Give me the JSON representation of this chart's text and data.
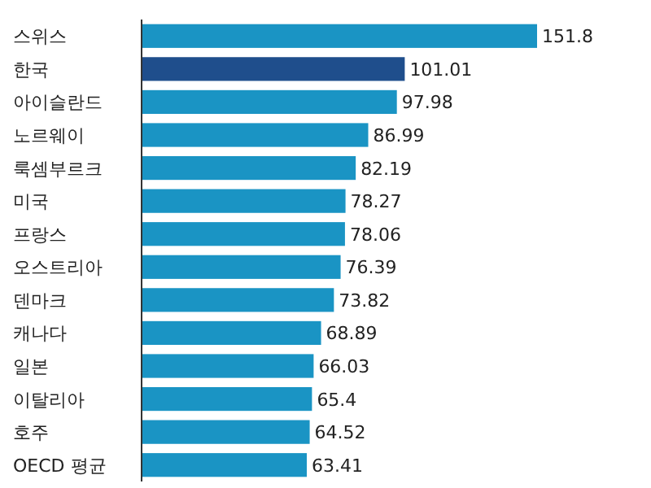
{
  "chart_data": {
    "type": "bar",
    "orientation": "horizontal",
    "data_labels": true,
    "categories": [
      "스위스",
      "한국",
      "아이슬란드",
      "노르웨이",
      "룩셈부르크",
      "미국",
      "프랑스",
      "오스트리아",
      "덴마크",
      "캐나다",
      "일본",
      "이탈리아",
      "호주",
      "OECD 평균"
    ],
    "values": [
      151.8,
      101.01,
      97.98,
      86.99,
      82.19,
      78.27,
      78.06,
      76.39,
      73.82,
      68.89,
      66.03,
      65.4,
      64.52,
      63.41
    ],
    "colors": [
      "#1a94c4",
      "#1f4e8c",
      "#1a94c4",
      "#1a94c4",
      "#1a94c4",
      "#1a94c4",
      "#1a94c4",
      "#1a94c4",
      "#1a94c4",
      "#1a94c4",
      "#1a94c4",
      "#1a94c4",
      "#1a94c4",
      "#1a94c4"
    ]
  }
}
